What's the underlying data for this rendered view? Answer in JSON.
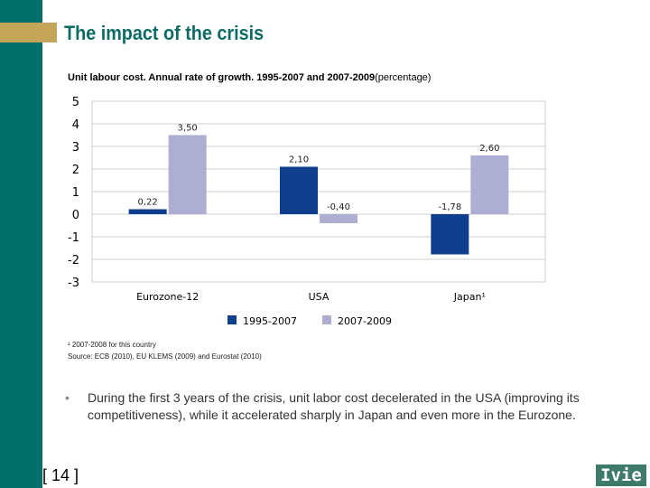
{
  "slide": {
    "title": "The impact of the crisis",
    "page": "[ 14 ]",
    "logo": "Ivie",
    "bullet": "•",
    "text": "During the  first 3 years of the crisis, unit labor cost decelerated in the USA (improving its competitiveness), while it accelerated sharply in Japan and even more in the Eurozone.",
    "footnote": "¹ 2007-2008 for this country",
    "source": "Source: ECB (2010), EU KLEMS (2009) and  Eurostat (2010)"
  },
  "chart_data": {
    "type": "bar",
    "title": "Unit labour cost. Annual rate of growth. 1995-2007 and 2007-2009",
    "title_suffix": "(percentage)",
    "categories": [
      "Eurozone-12",
      "USA",
      "Japan¹"
    ],
    "series": [
      {
        "name": "1995-2007",
        "values": [
          0.22,
          2.1,
          -1.78
        ],
        "labels": [
          "0,22",
          "2,10",
          "-1,78"
        ],
        "color": "#0f3f8c"
      },
      {
        "name": "2007-2009",
        "values": [
          3.5,
          -0.4,
          2.6
        ],
        "labels": [
          "3,50",
          "-0,40",
          "2,60"
        ],
        "color": "#aeaed3"
      }
    ],
    "ylim": [
      -3,
      5
    ],
    "yticks": [
      5,
      4,
      3,
      2,
      1,
      0,
      -1,
      -2,
      -3
    ],
    "grid": true,
    "legend": "bottom"
  }
}
